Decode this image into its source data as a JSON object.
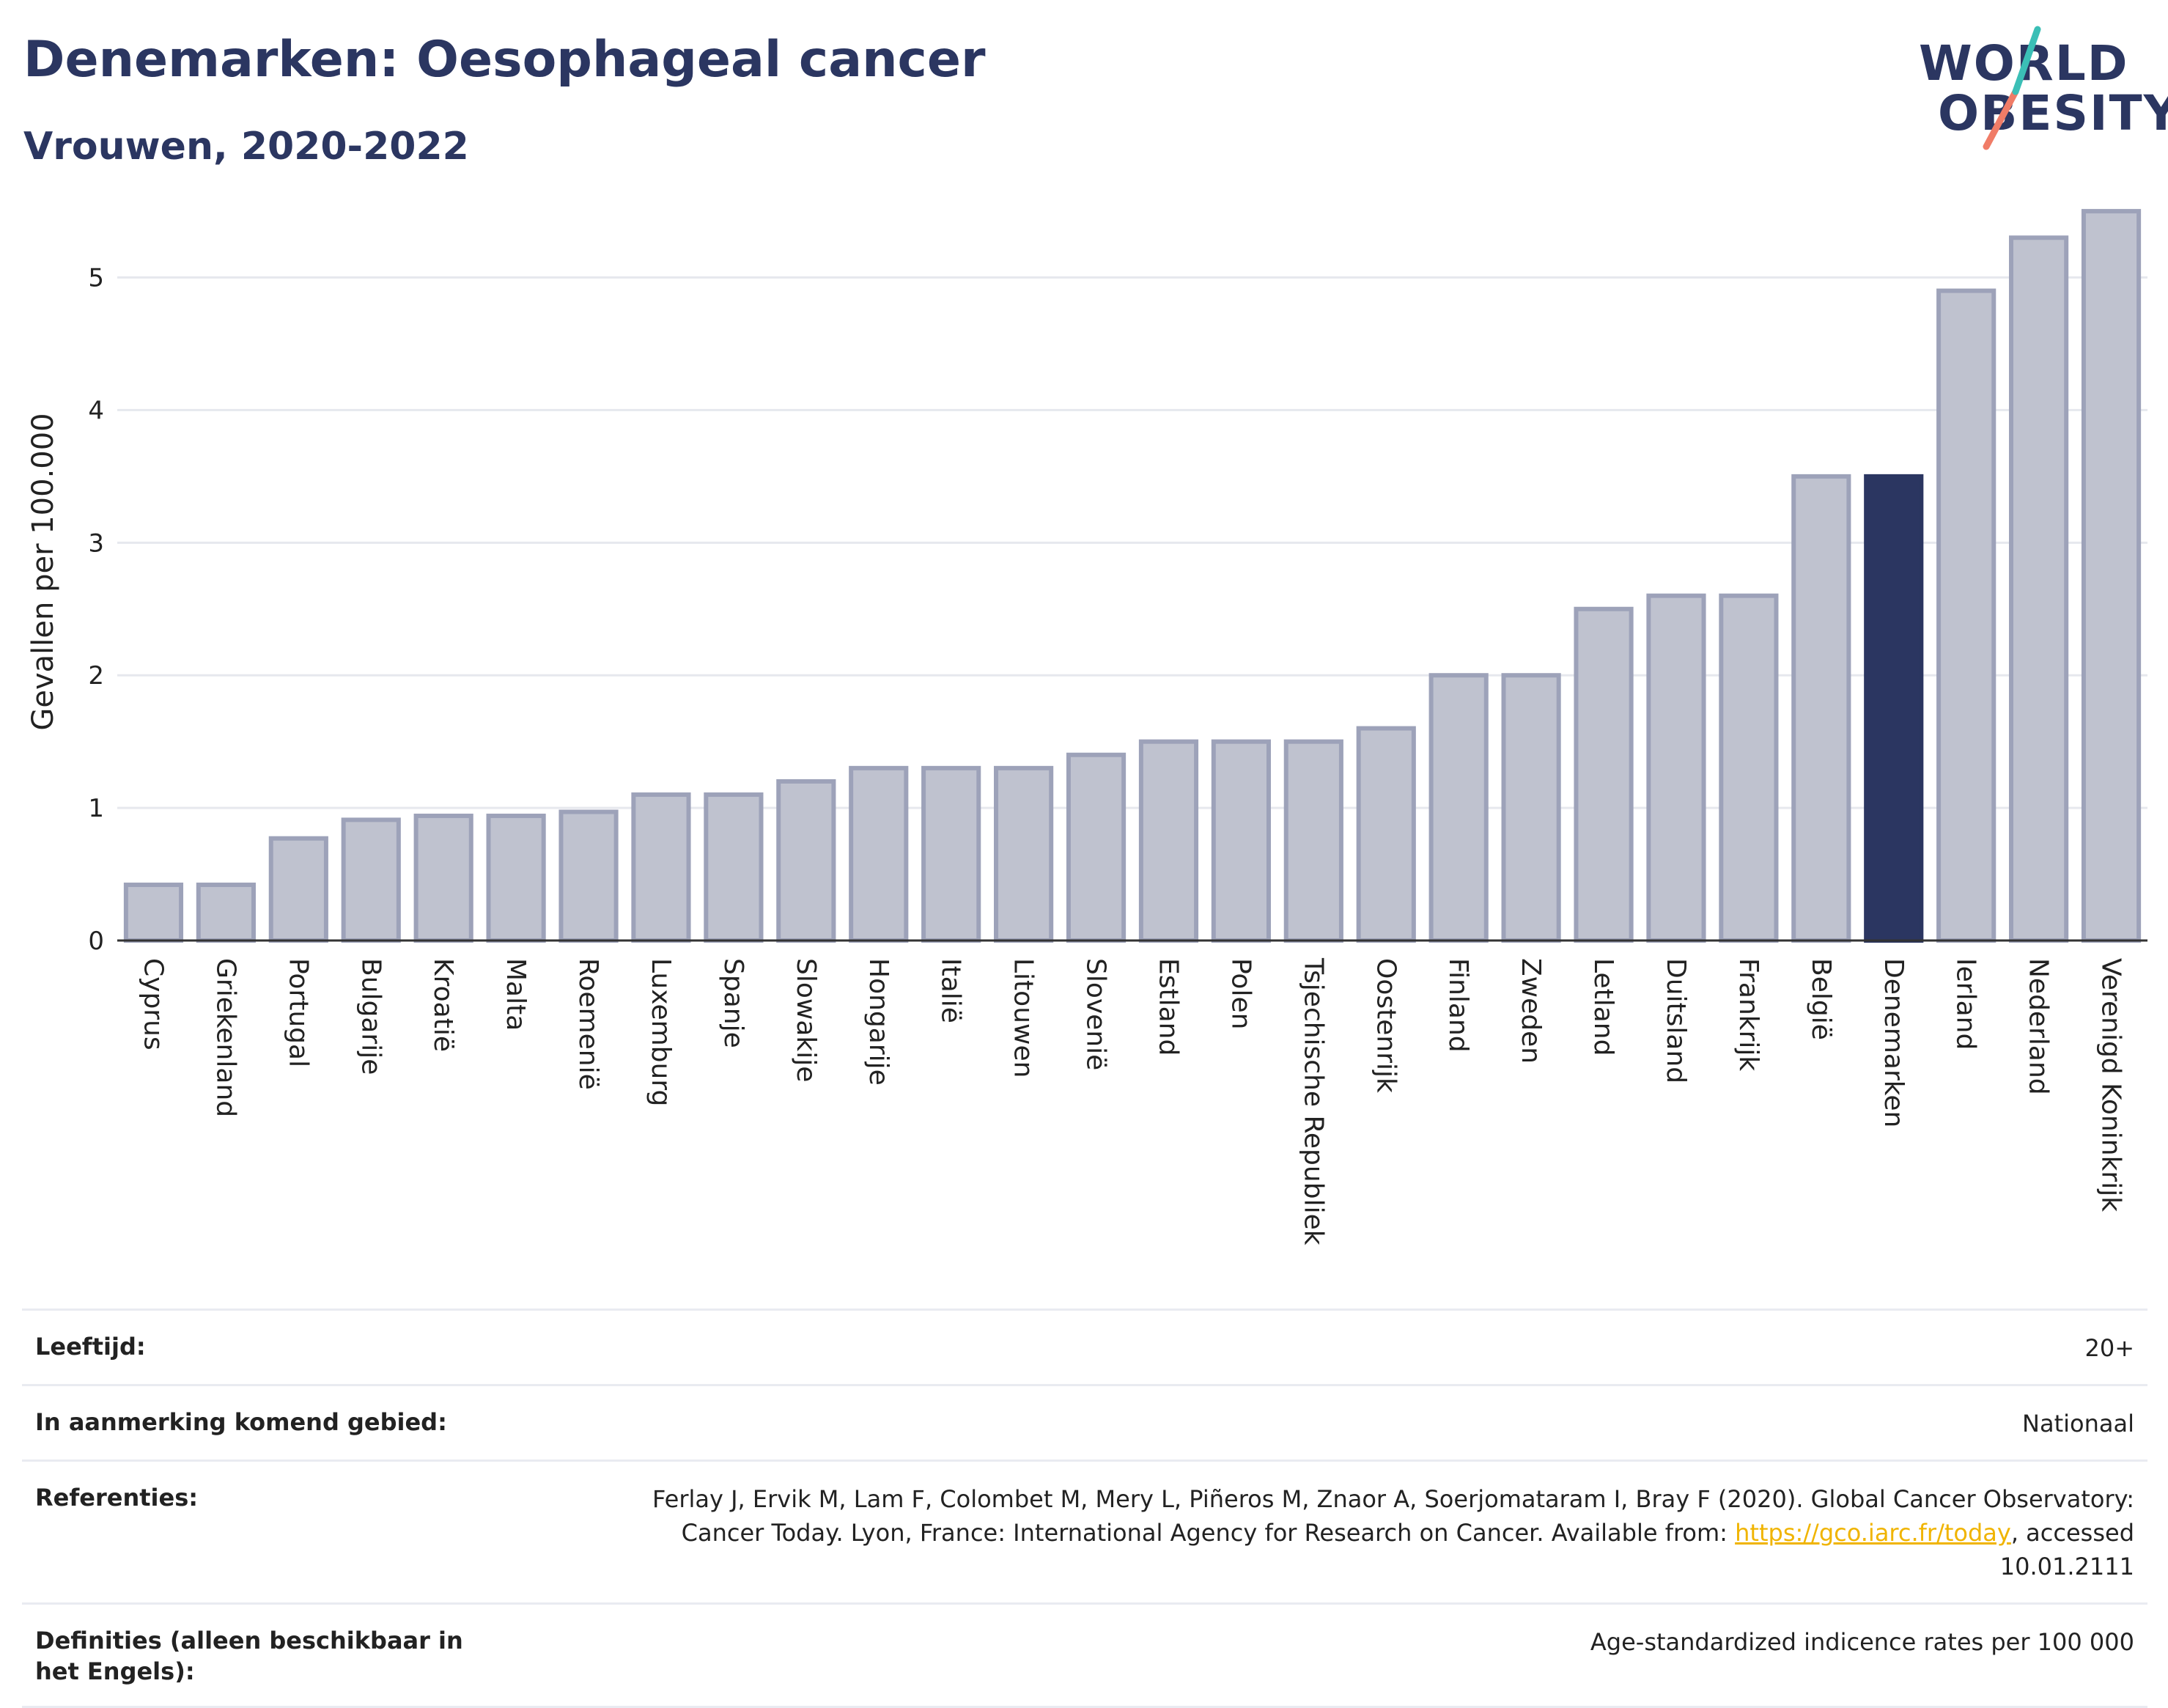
{
  "header": {
    "title": "Denemarken: Oesophageal cancer",
    "subtitle": "Vrouwen, 2020-2022"
  },
  "logo": {
    "line1": "WORLD",
    "line2": "OBESITY"
  },
  "colors": {
    "bar_default": "#bfc2cf",
    "bar_default_stroke": "#9da2b9",
    "bar_highlight": "#2b3661",
    "title": "#2b3661",
    "logo_teal": "#3bbfb6",
    "logo_coral": "#f07c67",
    "link": "#f0b400"
  },
  "chart_data": {
    "type": "bar",
    "ylabel": "Gevallen per 100.000",
    "ylim": [
      0,
      5.6
    ],
    "yticks": [
      0,
      1,
      2,
      3,
      4,
      5
    ],
    "grid": true,
    "highlight": "Denemarken",
    "categories": [
      "Cyprus",
      "Griekenland",
      "Portugal",
      "Bulgarije",
      "Kroatië",
      "Malta",
      "Roemenië",
      "Luxemburg",
      "Spanje",
      "Slowakije",
      "Hongarije",
      "Italië",
      "Litouwen",
      "Slovenië",
      "Estland",
      "Polen",
      "Tsjechische Republiek",
      "Oostenrijk",
      "Finland",
      "Zweden",
      "Letland",
      "Duitsland",
      "Frankrijk",
      "België",
      "Denemarken",
      "Ierland",
      "Nederland",
      "Verenigd Koninkrijk"
    ],
    "values": [
      0.42,
      0.42,
      0.77,
      0.91,
      0.94,
      0.94,
      0.97,
      1.1,
      1.1,
      1.2,
      1.3,
      1.3,
      1.3,
      1.4,
      1.5,
      1.5,
      1.5,
      1.6,
      2.0,
      2.0,
      2.5,
      2.6,
      2.6,
      3.5,
      3.5,
      4.9,
      5.3,
      5.5
    ]
  },
  "info": {
    "rows": [
      {
        "label": "Leeftijd:",
        "value": "20+"
      },
      {
        "label": "In aanmerking komend gebied:",
        "value": "Nationaal"
      },
      {
        "label": "Referenties:",
        "value_before": "Ferlay J, Ervik M, Lam F, Colombet M, Mery L, Piñeros M, Znaor A, Soerjomataram I, Bray F (2020). Global Cancer Observatory: Cancer Today. Lyon, France: International Agency for Research on Cancer. Available from: ",
        "link": "https://gco.iarc.fr/today",
        "value_after": ", accessed 10.01.2111"
      },
      {
        "label": "Definities (alleen beschikbaar in het Engels):",
        "value": "Age-standardized indicence rates per 100 000"
      }
    ]
  }
}
